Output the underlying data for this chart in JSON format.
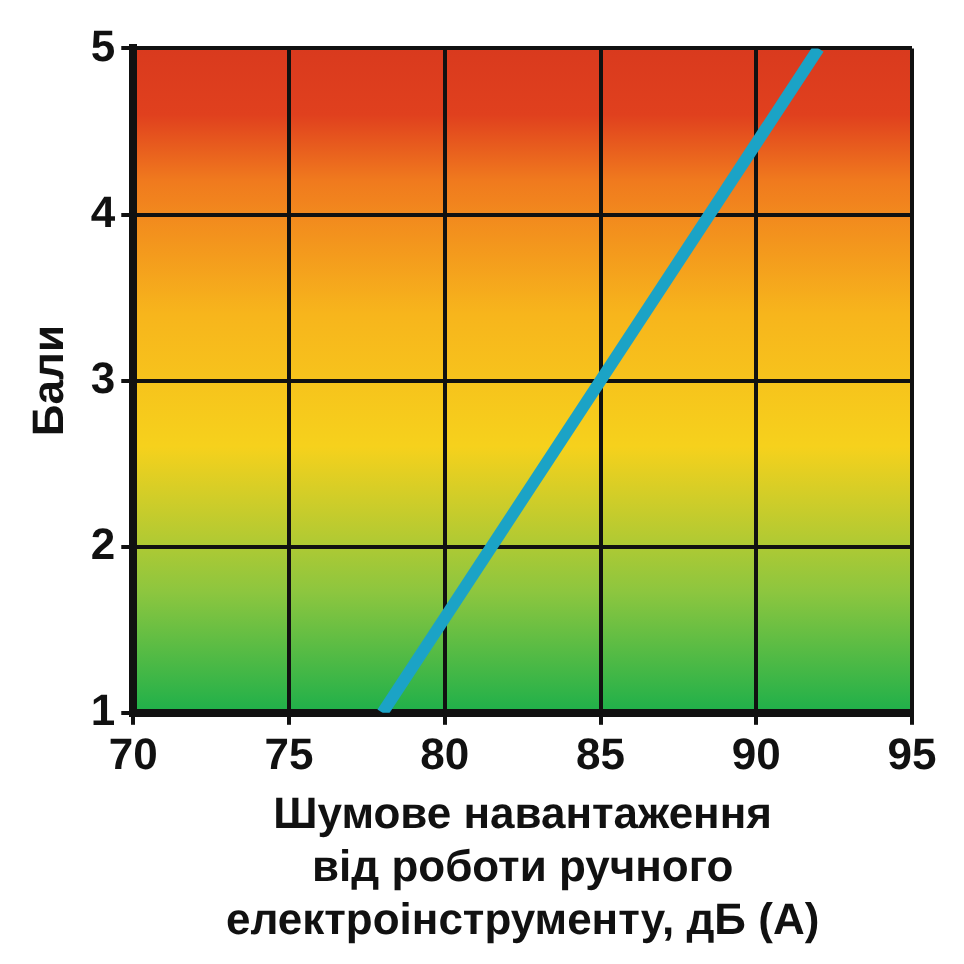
{
  "chart_data": {
    "type": "line",
    "xlabel": "Шумове навантаження\nвід роботи ручного\nелектроінструменту, дБ (А)",
    "ylabel": "Бали",
    "x": [
      78,
      92
    ],
    "series": [
      {
        "color": "#1ba3c6",
        "values": [
          1,
          5
        ]
      }
    ],
    "xlim": [
      70,
      95
    ],
    "xticks": [
      70,
      75,
      80,
      85,
      90,
      95
    ],
    "ylim": [
      1,
      5
    ],
    "yticks": [
      1,
      2,
      3,
      4,
      5
    ],
    "grid": true,
    "legend": false,
    "marker": "none",
    "line_style": "solid"
  }
}
